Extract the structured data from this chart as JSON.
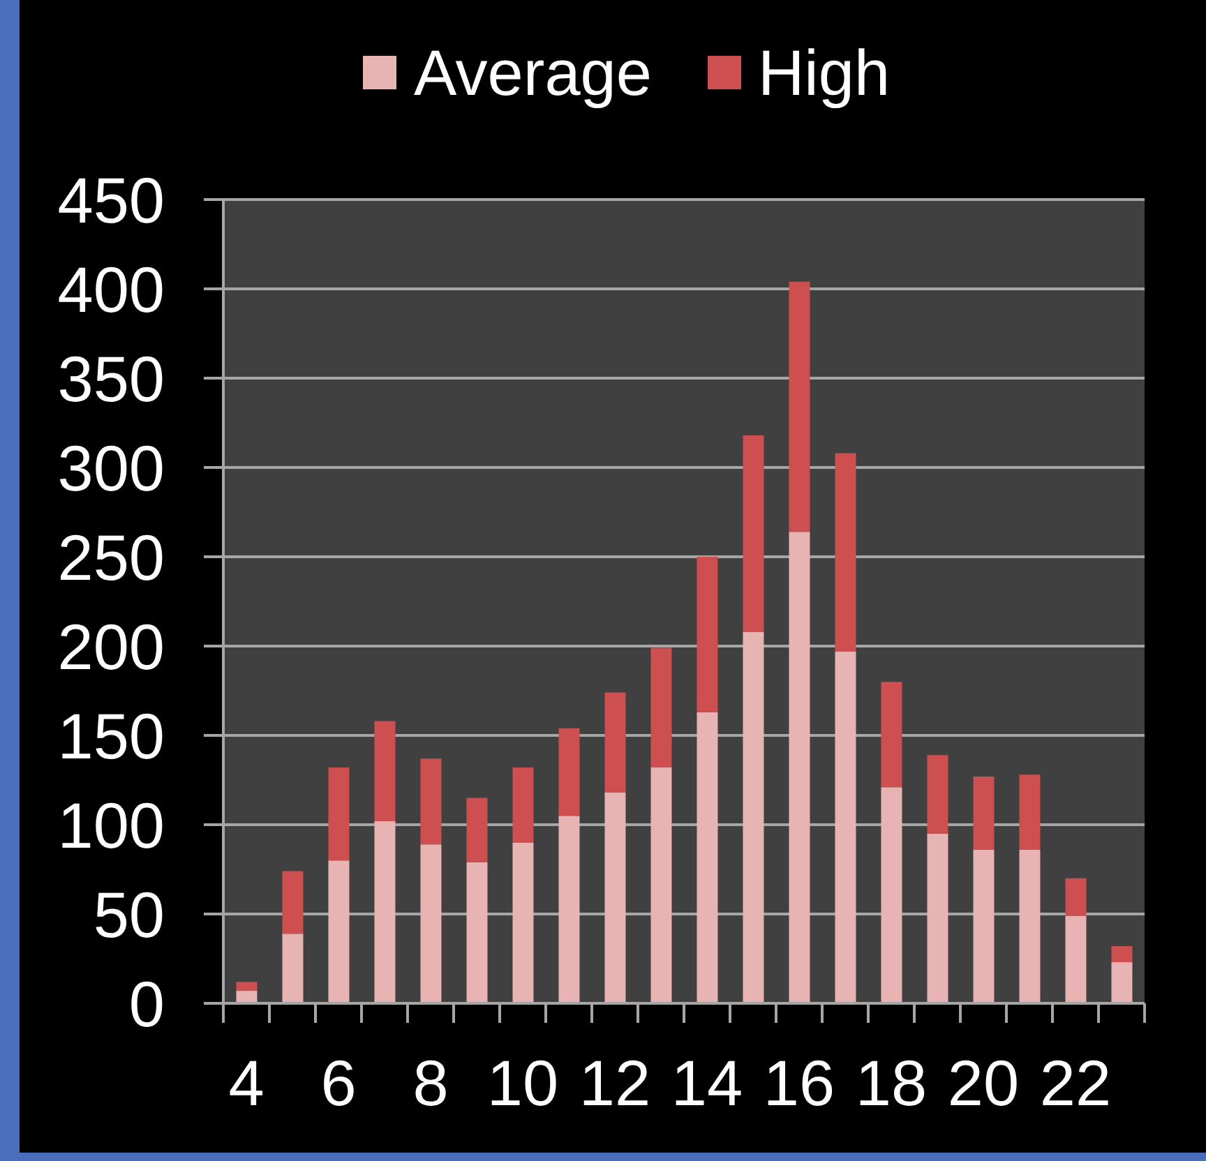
{
  "chart_data": {
    "type": "bar",
    "stacked": true,
    "categories": [
      "4",
      null,
      "6",
      null,
      "8",
      null,
      "10",
      null,
      "12",
      null,
      "14",
      null,
      "16",
      null,
      "18",
      null,
      "20",
      null,
      "22",
      null
    ],
    "series": [
      {
        "name": "Average",
        "color": "#e7b3b3",
        "values": [
          7,
          39,
          80,
          102,
          89,
          79,
          90,
          105,
          118,
          132,
          163,
          208,
          264,
          197,
          121,
          95,
          86,
          86,
          49,
          23
        ]
      },
      {
        "name": "High",
        "color": "#cd4f4f",
        "values": [
          5,
          35,
          52,
          56,
          48,
          36,
          42,
          49,
          56,
          67,
          87,
          110,
          140,
          111,
          59,
          44,
          41,
          42,
          21,
          9
        ]
      }
    ],
    "ylim": [
      0,
      450
    ],
    "yticks": [
      0,
      50,
      100,
      150,
      200,
      250,
      300,
      350,
      400,
      450
    ],
    "grid": "y",
    "legend": "top"
  }
}
